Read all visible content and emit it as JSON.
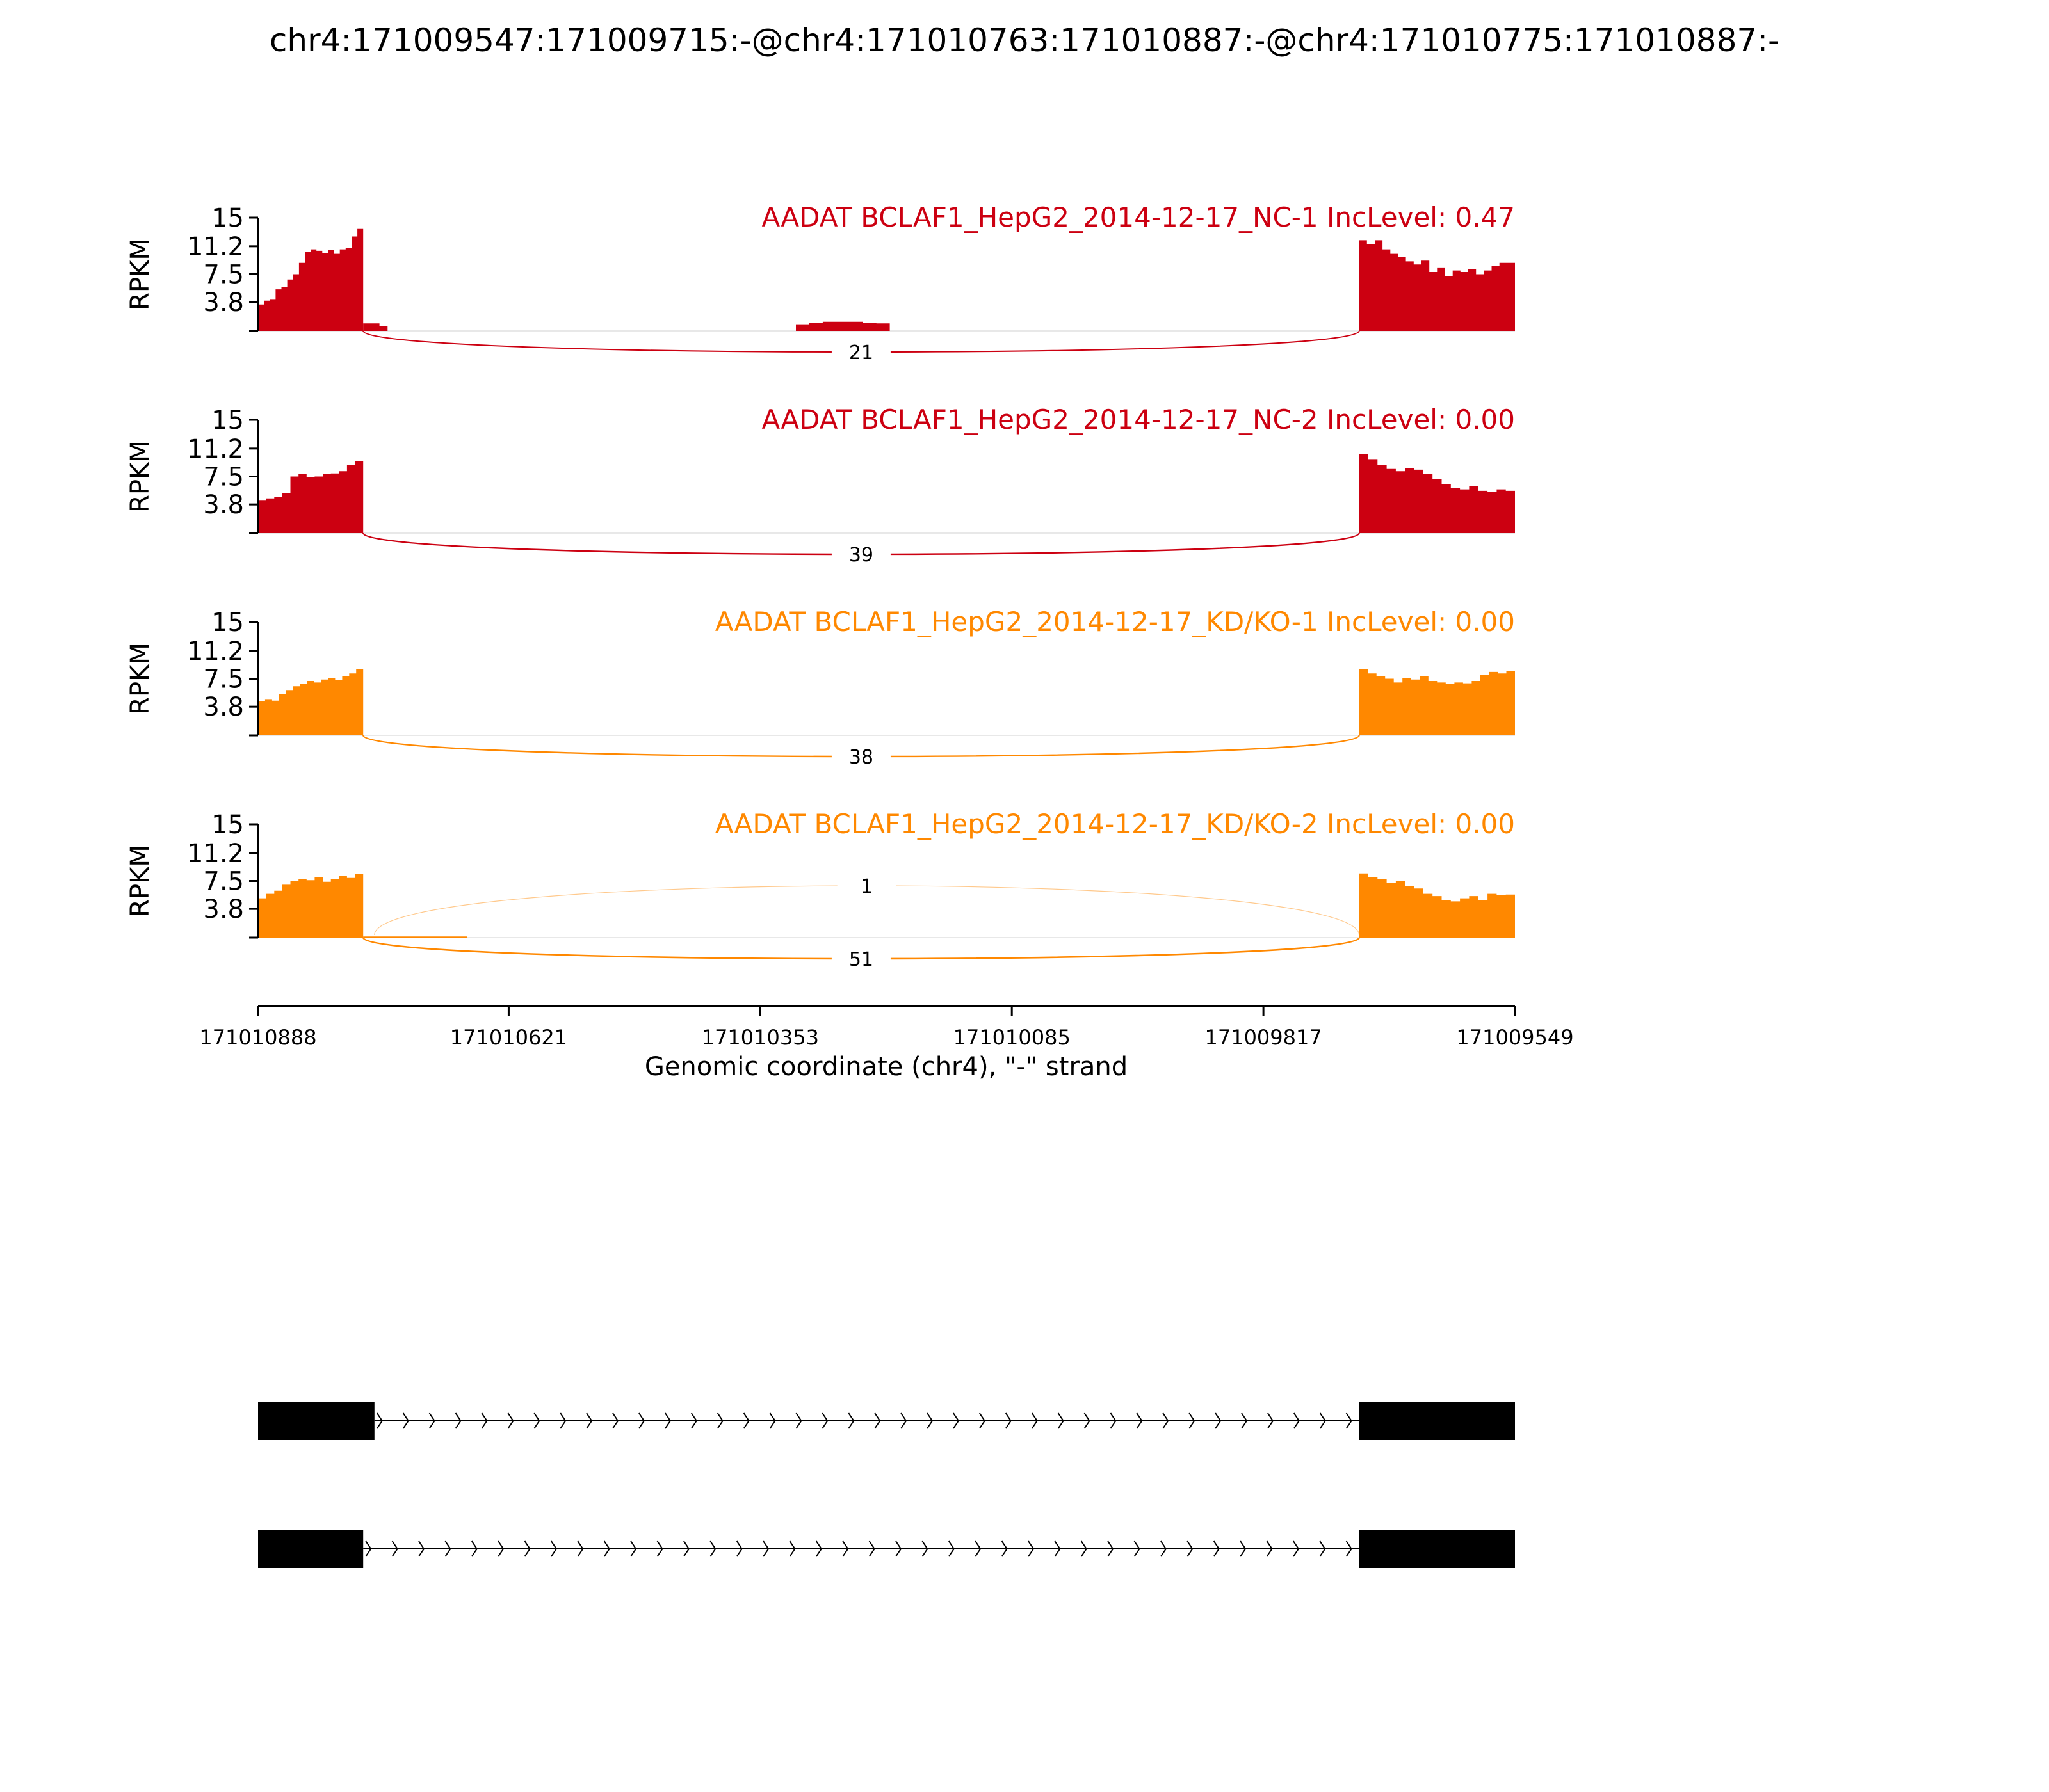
{
  "figure": {
    "title": "chr4:171009547:171009715:-@chr4:171010763:171010887:-@chr4:171010775:171010887:-"
  },
  "chart_data": {
    "type": "area",
    "subtype": "sashimi",
    "xlabel": "Genomic coordinate (chr4), \"-\" strand",
    "xlim": [
      171010888,
      171009549
    ],
    "x_reversed": true,
    "x_ticks": [
      171010888,
      171010621,
      171010353,
      171010085,
      171009817,
      171009549
    ],
    "ylabel": "RPKM",
    "ylim": [
      0,
      15
    ],
    "y_ticks": [
      3.8,
      7.5,
      11.2,
      15
    ],
    "y_tick_labels": [
      "3.8",
      "7.5",
      "11.2",
      "15"
    ],
    "panels": [
      {
        "label": "AADAT BCLAF1_HepG2_2014-12-17_NC-1 IncLevel: 0.47",
        "color": "#cc0011",
        "coverage_blocks": [
          {
            "start": 171010888,
            "end": 171010776,
            "profile": [
              3.5,
              4.0,
              4.2,
              5.5,
              5.8,
              6.8,
              7.5,
              9.0,
              10.5,
              10.8,
              10.6,
              10.3,
              10.7,
              10.2,
              10.8,
              11.0,
              12.5,
              13.5
            ]
          },
          {
            "start": 171010776,
            "end": 171010750,
            "profile": [
              1.0,
              1.0,
              0.6
            ]
          },
          {
            "start": 171010315,
            "end": 171010215,
            "profile": [
              0.8,
              1.1,
              1.2,
              1.2,
              1.2,
              1.1,
              1.0
            ]
          },
          {
            "start": 171009715,
            "end": 171009549,
            "profile": [
              12.0,
              11.5,
              12.0,
              10.8,
              10.2,
              9.8,
              9.2,
              8.8,
              9.3,
              7.8,
              8.4,
              7.2,
              8.0,
              7.8,
              8.2,
              7.5,
              8.0,
              8.6,
              9.0,
              9.0
            ]
          }
        ],
        "junctions": [
          {
            "from": 171010776,
            "to": 171009715,
            "count": "21",
            "side": "below"
          }
        ]
      },
      {
        "label": "AADAT BCLAF1_HepG2_2014-12-17_NC-2 IncLevel: 0.00",
        "color": "#cc0011",
        "coverage_blocks": [
          {
            "start": 171010888,
            "end": 171010776,
            "profile": [
              4.3,
              4.6,
              4.8,
              5.3,
              7.5,
              7.8,
              7.4,
              7.5,
              7.8,
              7.9,
              8.2,
              9.0,
              9.5
            ]
          },
          {
            "start": 171009715,
            "end": 171009549,
            "profile": [
              10.5,
              9.8,
              9.0,
              8.5,
              8.2,
              8.6,
              8.4,
              7.8,
              7.2,
              6.5,
              6.0,
              5.8,
              6.2,
              5.6,
              5.5,
              5.8,
              5.6
            ]
          }
        ],
        "junctions": [
          {
            "from": 171010776,
            "to": 171009715,
            "count": "39",
            "side": "below"
          }
        ]
      },
      {
        "label": "AADAT BCLAF1_HepG2_2014-12-17_KD/KO-1 IncLevel: 0.00",
        "color": "#ff8800",
        "coverage_blocks": [
          {
            "start": 171010888,
            "end": 171010776,
            "profile": [
              4.5,
              4.8,
              4.6,
              5.5,
              6.0,
              6.5,
              6.8,
              7.2,
              7.0,
              7.4,
              7.6,
              7.3,
              7.8,
              8.2,
              8.8
            ]
          },
          {
            "start": 171009715,
            "end": 171009549,
            "profile": [
              8.8,
              8.2,
              7.8,
              7.5,
              7.0,
              7.6,
              7.4,
              7.8,
              7.2,
              7.0,
              6.8,
              7.0,
              6.9,
              7.2,
              8.0,
              8.4,
              8.2,
              8.5
            ]
          }
        ],
        "junctions": [
          {
            "from": 171010776,
            "to": 171009715,
            "count": "38",
            "side": "below"
          }
        ]
      },
      {
        "label": "AADAT BCLAF1_HepG2_2014-12-17_KD/KO-2 IncLevel: 0.00",
        "color": "#ff8800",
        "coverage_blocks": [
          {
            "start": 171010888,
            "end": 171010776,
            "profile": [
              5.2,
              5.8,
              6.2,
              7.0,
              7.5,
              7.8,
              7.6,
              8.0,
              7.4,
              7.8,
              8.2,
              7.9,
              8.4
            ]
          },
          {
            "start": 171010776,
            "end": 171010665,
            "profile": [
              0.15,
              0.15,
              0.15
            ]
          },
          {
            "start": 171009715,
            "end": 171009549,
            "profile": [
              8.5,
              8.0,
              7.8,
              7.2,
              7.5,
              6.8,
              6.5,
              5.8,
              5.5,
              5.0,
              4.8,
              5.2,
              5.5,
              5.0,
              5.8,
              5.6,
              5.7
            ]
          }
        ],
        "junctions": [
          {
            "from": 171010764,
            "to": 171009715,
            "count": "1",
            "side": "above"
          },
          {
            "from": 171010776,
            "to": 171009715,
            "count": "51",
            "side": "below"
          }
        ]
      }
    ],
    "gene_models": [
      {
        "exons": [
          [
            171010888,
            171010764
          ],
          [
            171009715,
            171009549
          ]
        ]
      },
      {
        "exons": [
          [
            171010888,
            171010776
          ],
          [
            171009715,
            171009549
          ]
        ]
      }
    ]
  }
}
